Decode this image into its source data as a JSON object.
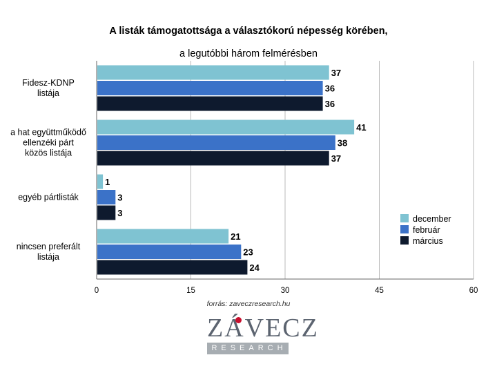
{
  "chart_data": {
    "type": "bar",
    "orientation": "horizontal",
    "title": "A listák támogatottsága a választókorú népesség körében,",
    "subtitle": "a legutóbbi három felmérésben",
    "categories": [
      "Fidesz-KDNP\nlistája",
      "a hat együttműködő\nellenzéki párt\nközös listája",
      "egyéb pártlisták",
      "nincsen preferált\nlistája"
    ],
    "series": [
      {
        "name": "december",
        "values": [
          37,
          41,
          1,
          21
        ],
        "color": "#7fc3d2"
      },
      {
        "name": "február",
        "values": [
          36,
          38,
          3,
          23
        ],
        "color": "#3b72c8"
      },
      {
        "name": "március",
        "values": [
          36,
          37,
          3,
          24
        ],
        "color": "#0e1a2e"
      }
    ],
    "xlim": [
      0,
      60
    ],
    "xticks": [
      0,
      15,
      30,
      45,
      60
    ],
    "grid": true,
    "legend_position": "right"
  },
  "footer": {
    "source": "forrás: zaveczresearch.hu",
    "logo_top": "ZÁVECZ",
    "logo_bottom": "RESEARCH"
  }
}
